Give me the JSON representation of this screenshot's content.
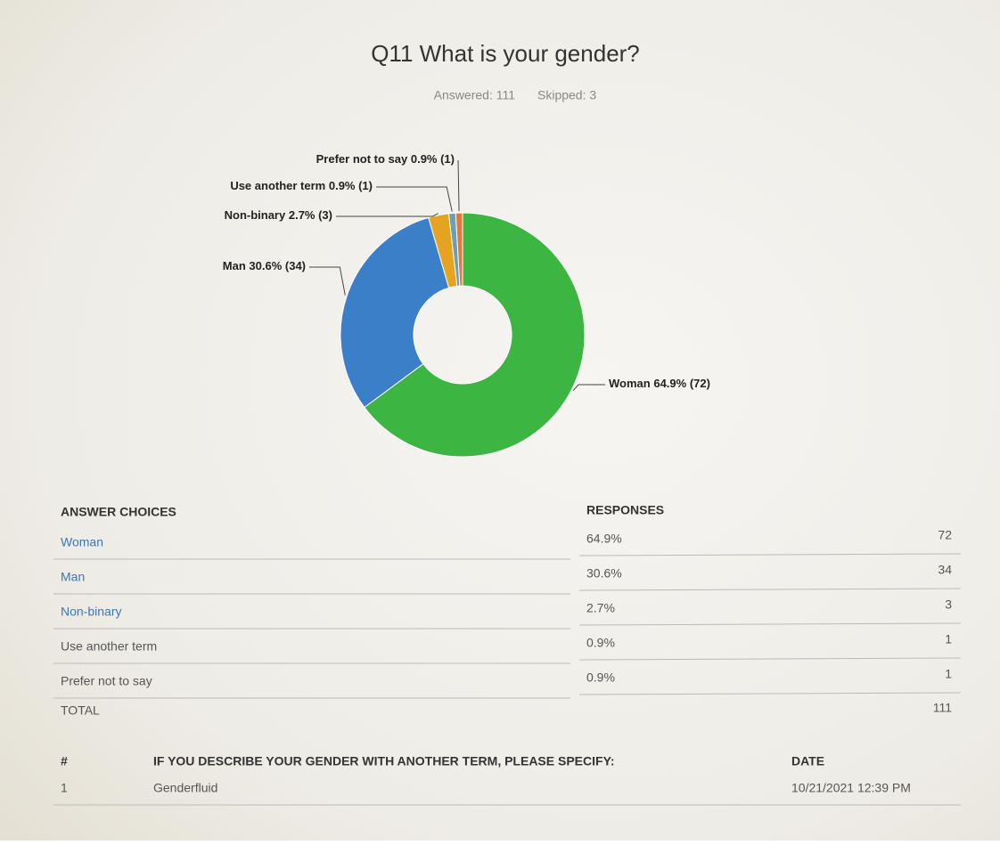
{
  "chart_data": {
    "type": "donut",
    "title": "Q11 What is your gender?",
    "answered": "Answered: 111",
    "skipped": "Skipped: 3",
    "categories": [
      "Woman",
      "Man",
      "Non-binary",
      "Use another term",
      "Prefer not to say"
    ],
    "values": [
      72,
      34,
      3,
      1,
      1
    ],
    "value_labels": [
      "64.9% (72)",
      "30.6% (34)",
      "2.7% (3)",
      "0.9% (1)",
      "0.9% (1)"
    ],
    "colors": [
      "#3cb543",
      "#3a7fc8",
      "#e5a321",
      "#6d9fb3",
      "#e0793b"
    ]
  },
  "table": {
    "header": [
      "ANSWER CHOICES",
      "RESPONSES"
    ],
    "rows": [
      [
        "Woman",
        "64.9%",
        "72"
      ],
      [
        "Man",
        "30.6%",
        "34"
      ],
      [
        "Non-binary",
        "2.7%",
        "3"
      ],
      [
        "Use another term",
        "0.9%",
        "1"
      ],
      [
        "Prefer not to say",
        "0.9%",
        "1"
      ]
    ],
    "total": [
      "TOTAL",
      "111"
    ]
  },
  "other_table": {
    "header": [
      "#",
      "IF YOU DESCRIBE YOUR GENDER WITH ANOTHER TERM, PLEASE SPECIFY:",
      "DATE"
    ],
    "rows": [
      [
        "1",
        "Genderfluid",
        "10/21/2021 12:39 PM"
      ]
    ]
  }
}
